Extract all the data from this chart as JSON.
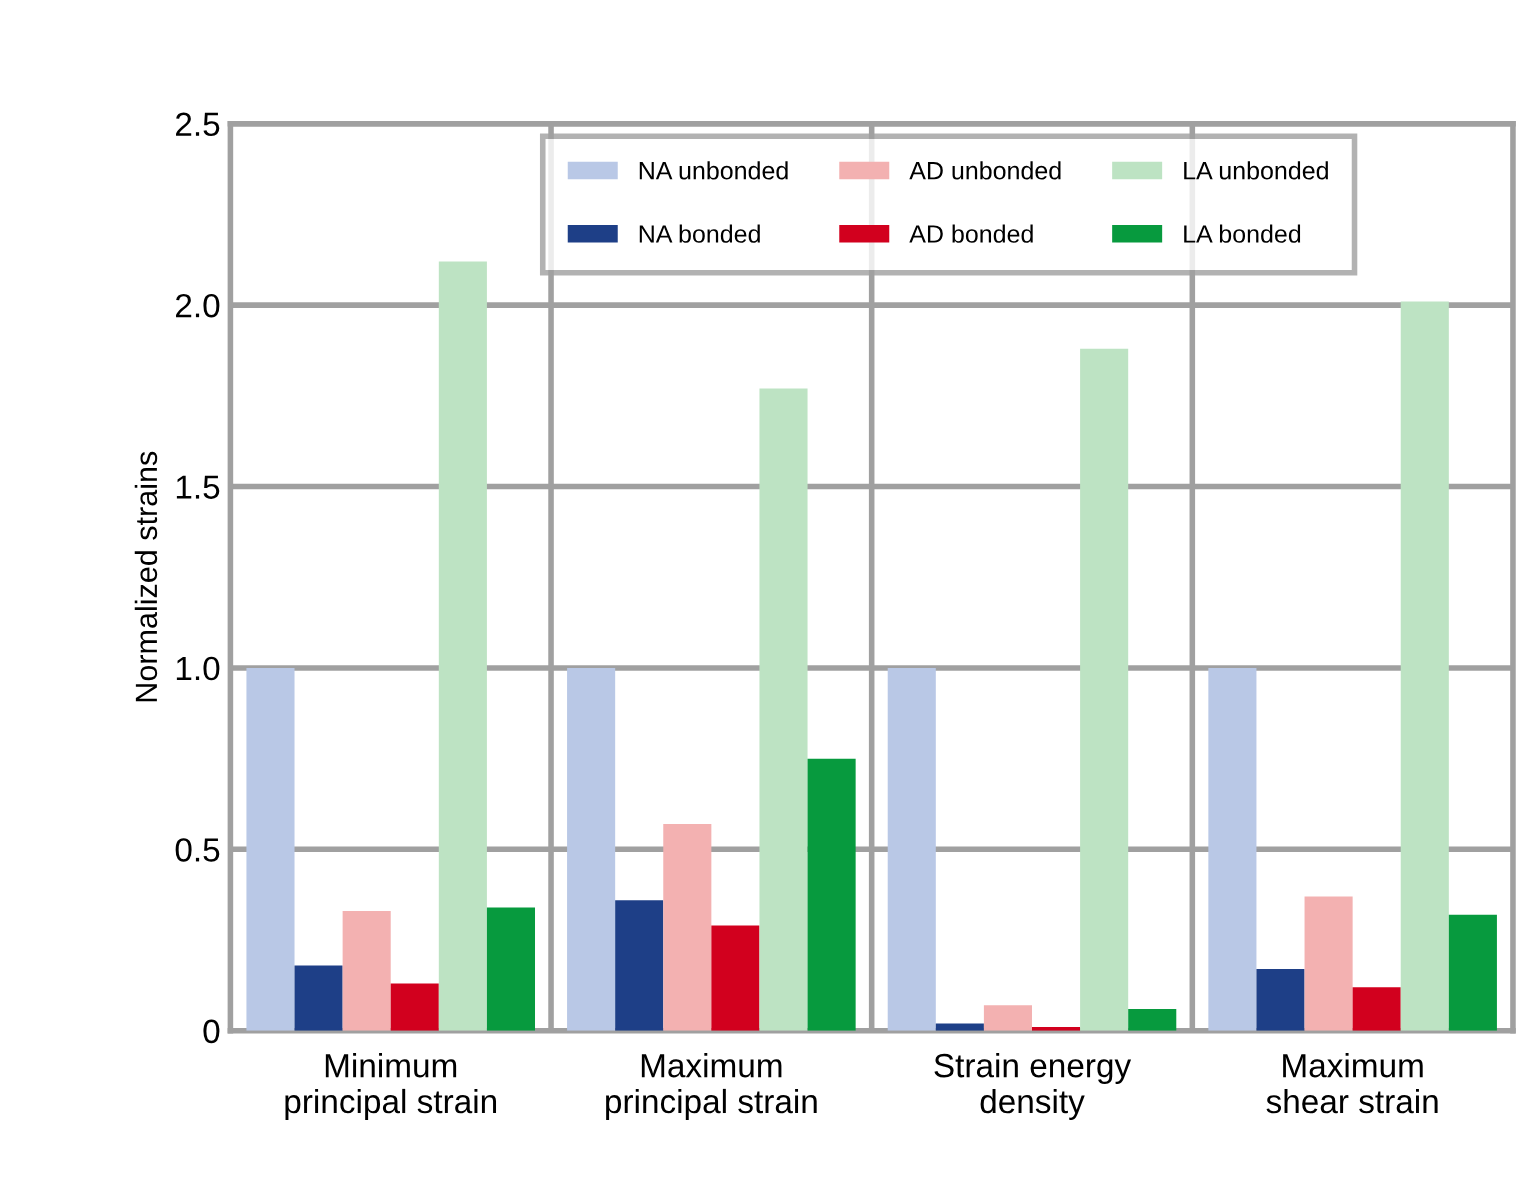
{
  "chart_data": {
    "type": "bar",
    "ylabel": "Normalized strains",
    "categories": [
      "Minimum\nprincipal strain",
      "Maximum\nprincipal strain",
      "Strain energy\ndensity",
      "Maximum\nshear strain"
    ],
    "series": [
      {
        "name": "NA unbonded",
        "color": "#b9c8e6",
        "values": [
          1.0,
          1.0,
          1.0,
          1.0
        ]
      },
      {
        "name": "NA bonded",
        "color": "#1e3f87",
        "values": [
          0.18,
          0.36,
          0.02,
          0.17
        ]
      },
      {
        "name": "AD unbonded",
        "color": "#f3b1b1",
        "values": [
          0.33,
          0.57,
          0.07,
          0.37
        ]
      },
      {
        "name": "AD bonded",
        "color": "#d2001e",
        "values": [
          0.13,
          0.29,
          0.01,
          0.12
        ]
      },
      {
        "name": "LA unbonded",
        "color": "#bde3c3",
        "values": [
          2.12,
          1.77,
          1.88,
          2.01
        ]
      },
      {
        "name": "LA bonded",
        "color": "#079a3e",
        "values": [
          0.34,
          0.75,
          0.06,
          0.32
        ]
      }
    ],
    "ylim": [
      0,
      2.5
    ],
    "yticks": [
      {
        "value": 0,
        "label": "0"
      },
      0.5,
      {
        "value": 1,
        "label": "1.0"
      },
      1.5,
      {
        "value": 2,
        "label": "2.0"
      },
      2.5
    ],
    "grid": true,
    "legend": "top"
  }
}
